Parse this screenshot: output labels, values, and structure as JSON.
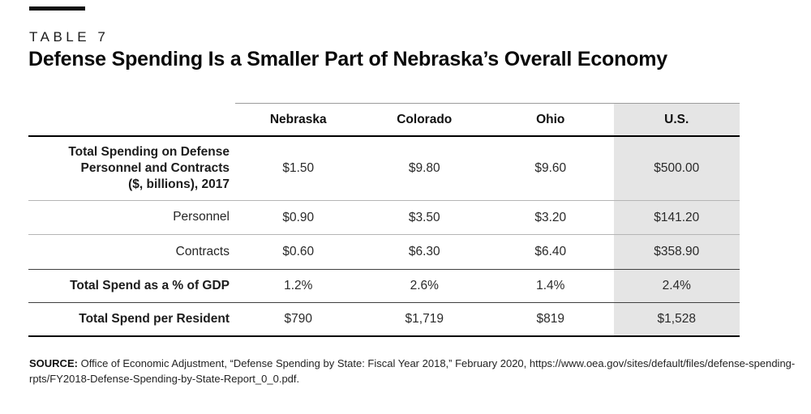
{
  "header": {
    "table_label": "TABLE 7",
    "title": "Defense Spending Is a Smaller Part of Nebraska’s Overall Economy"
  },
  "table": {
    "columns": [
      "Nebraska",
      "Colorado",
      "Ohio",
      "U.S."
    ],
    "highlighted_column": "U.S.",
    "rows": [
      {
        "label": "Total Spending on Defense Personnel and Contracts ($, billions), 2017",
        "lines": [
          "Total Spending on Defense",
          "Personnel and Contracts",
          "($, billions), 2017"
        ],
        "bold": true,
        "values": [
          "$1.50",
          "$9.80",
          "$9.60",
          "$500.00"
        ]
      },
      {
        "label": "Personnel",
        "bold": false,
        "values": [
          "$0.90",
          "$3.50",
          "$3.20",
          "$141.20"
        ]
      },
      {
        "label": "Contracts",
        "bold": false,
        "values": [
          "$0.60",
          "$6.30",
          "$6.40",
          "$358.90"
        ]
      },
      {
        "label": "Total Spend as a % of GDP",
        "bold": true,
        "values": [
          "1.2%",
          "2.6%",
          "1.4%",
          "2.4%"
        ]
      },
      {
        "label": "Total Spend per Resident",
        "bold": true,
        "values": [
          "$790",
          "$1,719",
          "$819",
          "$1,528"
        ]
      }
    ]
  },
  "source": {
    "label": "SOURCE:",
    "text": "Office of Economic Adjustment, “Defense Spending by State: Fiscal Year 2018,” February 2020, https://www.oea.gov/sites/default/files/defense-spending-rpts/FY2018-Defense-Spending-by-State-Report_0_0.pdf."
  },
  "colors": {
    "highlight_column_bg": "#e5e5e5",
    "accent_bar": "#111111",
    "rule_heavy": "#000000",
    "rule_light": "#b5b5b5",
    "rule_medium": "#3f3f3f"
  },
  "chart_data": {
    "type": "table",
    "title": "Defense Spending Is a Smaller Part of Nebraska’s Overall Economy",
    "columns": [
      "",
      "Nebraska",
      "Colorado",
      "Ohio",
      "U.S."
    ],
    "rows": [
      [
        "Total Spending on Defense Personnel and Contracts ($, billions), 2017",
        "$1.50",
        "$9.80",
        "$9.60",
        "$500.00"
      ],
      [
        "Personnel",
        "$0.90",
        "$3.50",
        "$3.20",
        "$141.20"
      ],
      [
        "Contracts",
        "$0.60",
        "$6.30",
        "$6.40",
        "$358.90"
      ],
      [
        "Total Spend as a % of GDP",
        "1.2%",
        "2.6%",
        "1.4%",
        "2.4%"
      ],
      [
        "Total Spend per Resident",
        "$790",
        "$1,719",
        "$819",
        "$1,528"
      ]
    ]
  }
}
